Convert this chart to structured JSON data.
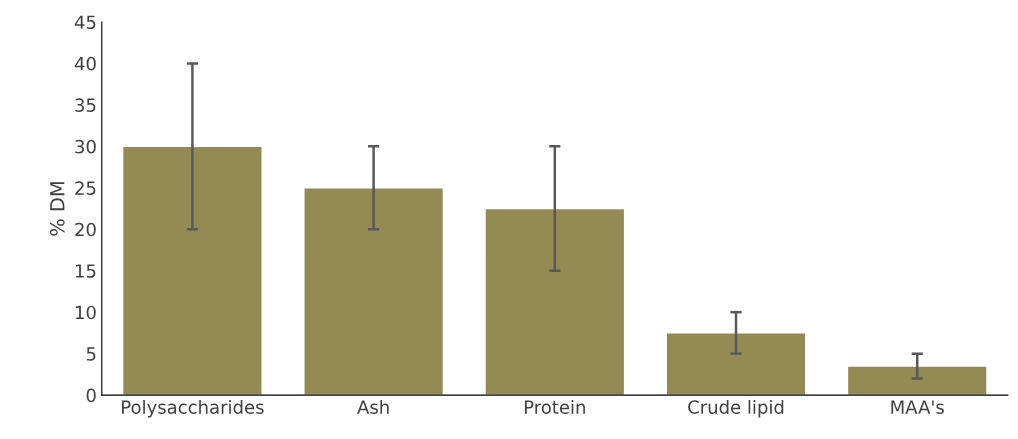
{
  "chart_data": {
    "type": "bar",
    "ylabel": "% DM",
    "categories": [
      "Polysaccharides",
      "Ash",
      "Protein",
      "Crude lipid",
      "MAA's"
    ],
    "values": [
      30,
      25,
      22.5,
      7.5,
      3.5
    ],
    "errors": [
      10,
      5,
      7.5,
      2.5,
      1.5
    ],
    "color": "#948a54",
    "ylim": [
      0,
      45
    ],
    "yticks": [
      0,
      5,
      10,
      15,
      20,
      25,
      30,
      35,
      40,
      45
    ],
    "grid": false,
    "legend": false
  }
}
